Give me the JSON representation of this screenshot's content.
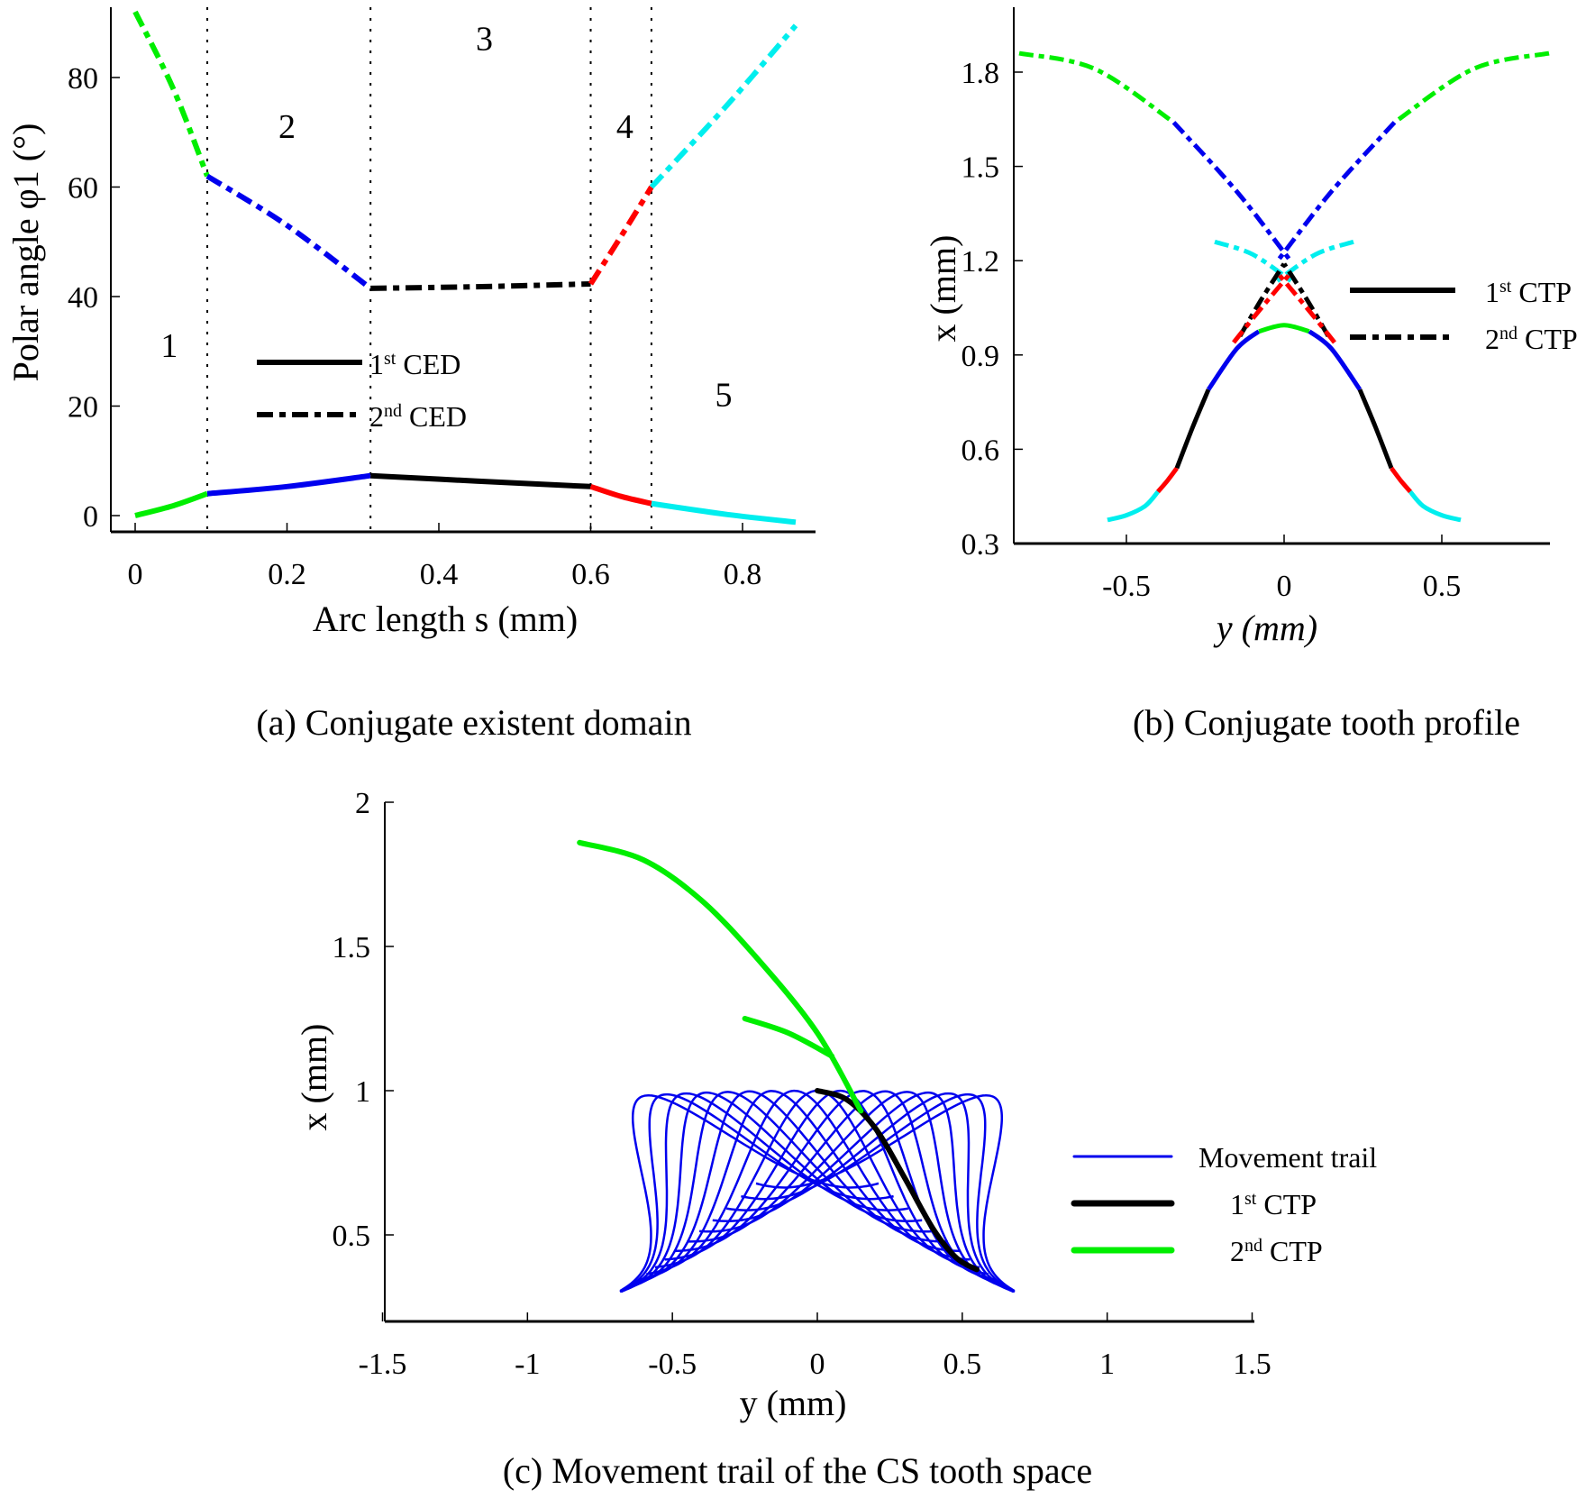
{
  "figure": {
    "captions": {
      "a": "(a) Conjugate existent domain",
      "b": "(b) Conjugate tooth profile",
      "c": "(c) Movement trail of the CS tooth space"
    },
    "colors": {
      "green": "#00ee00",
      "blue": "#0000ee",
      "black": "#000000",
      "red": "#ff0000",
      "cyan": "#00eeee"
    }
  },
  "chart_data": [
    {
      "id": "a",
      "type": "line",
      "title": "Conjugate existent domain",
      "xlabel": "Arc length s (mm)",
      "ylabel": "Polar angle φ1 (°)",
      "xlim": [
        -0.03,
        0.9
      ],
      "ylim": [
        -4,
        93
      ],
      "xticks": [
        "0",
        "0.2",
        "0.4",
        "0.6",
        "0.8"
      ],
      "xtick_values": [
        0,
        0.2,
        0.4,
        0.6,
        0.8
      ],
      "yticks": [
        "0",
        "20",
        "40",
        "60",
        "80"
      ],
      "ytick_values": [
        0,
        20,
        40,
        60,
        80
      ],
      "boundaries": [
        0.095,
        0.31,
        0.6,
        0.68
      ],
      "region_labels": [
        {
          "text": "1",
          "x": 0.045,
          "y": 29
        },
        {
          "text": "2",
          "x": 0.2,
          "y": 69
        },
        {
          "text": "3",
          "x": 0.46,
          "y": 85
        },
        {
          "text": "4",
          "x": 0.645,
          "y": 69
        },
        {
          "text": "5",
          "x": 0.775,
          "y": 20
        }
      ],
      "legend": [
        {
          "label": "1",
          "sup": "st",
          "rest": " CED",
          "style": "solid"
        },
        {
          "label": "2",
          "sup": "nd",
          "rest": " CED",
          "style": "dashdot"
        }
      ],
      "series": [
        {
          "name": "1st CED region 1",
          "color": "green",
          "style": "solid",
          "x": [
            0,
            0.05,
            0.095
          ],
          "y": [
            0,
            1.8,
            4
          ]
        },
        {
          "name": "1st CED region 2",
          "color": "blue",
          "style": "solid",
          "x": [
            0.095,
            0.2,
            0.31
          ],
          "y": [
            4,
            5.3,
            7.3
          ]
        },
        {
          "name": "1st CED region 3",
          "color": "black",
          "style": "solid",
          "x": [
            0.31,
            0.45,
            0.6
          ],
          "y": [
            7.3,
            6.3,
            5.3
          ]
        },
        {
          "name": "1st CED region 4",
          "color": "red",
          "style": "solid",
          "x": [
            0.6,
            0.64,
            0.68
          ],
          "y": [
            5.3,
            3.5,
            2.2
          ]
        },
        {
          "name": "1st CED region 5",
          "color": "cyan",
          "style": "solid",
          "x": [
            0.68,
            0.78,
            0.87
          ],
          "y": [
            2.2,
            0.2,
            -1.2
          ]
        },
        {
          "name": "2nd CED region 1",
          "color": "green",
          "style": "dashdot",
          "x": [
            0,
            0.05,
            0.095
          ],
          "y": [
            92,
            78,
            62
          ]
        },
        {
          "name": "2nd CED region 2",
          "color": "blue",
          "style": "dashdot",
          "x": [
            0.095,
            0.2,
            0.31
          ],
          "y": [
            62,
            53,
            41.5
          ]
        },
        {
          "name": "2nd CED region 3",
          "color": "black",
          "style": "dashdot",
          "x": [
            0.31,
            0.45,
            0.6
          ],
          "y": [
            41.5,
            41.8,
            42.3
          ]
        },
        {
          "name": "2nd CED region 4",
          "color": "red",
          "style": "dashdot",
          "x": [
            0.6,
            0.64,
            0.68
          ],
          "y": [
            42.3,
            51,
            60
          ]
        },
        {
          "name": "2nd CED region 5",
          "color": "cyan",
          "style": "dashdot",
          "x": [
            0.68,
            0.78,
            0.87
          ],
          "y": [
            60,
            75,
            89.5
          ]
        }
      ]
    },
    {
      "id": "b",
      "type": "line",
      "title": "Conjugate tooth profile",
      "xlabel": "y (mm)",
      "ylabel": "x (mm)",
      "xlim": [
        -0.85,
        0.85
      ],
      "ylim": [
        0.3,
        1.95
      ],
      "xticks": [
        "-0.5",
        "0",
        "0.5"
      ],
      "xtick_values": [
        -0.5,
        0,
        0.5
      ],
      "yticks": [
        "0.3",
        "0.6",
        "0.9",
        "1.2",
        "1.5",
        "1.8"
      ],
      "ytick_values": [
        0.3,
        0.6,
        0.9,
        1.2,
        1.5,
        1.8
      ],
      "legend": [
        {
          "label": "1",
          "sup": "st",
          "rest": " CTP",
          "style": "solid"
        },
        {
          "label": "2",
          "sup": "nd",
          "rest": " CTP",
          "style": "dashdot"
        }
      ],
      "series": [
        {
          "name": "1st CTP cyan left",
          "color": "cyan",
          "style": "solid",
          "x": [
            -0.56,
            -0.5,
            -0.44,
            -0.4
          ],
          "y": [
            0.375,
            0.39,
            0.42,
            0.465
          ]
        },
        {
          "name": "1st CTP red left",
          "color": "red",
          "style": "solid",
          "x": [
            -0.4,
            -0.37,
            -0.34
          ],
          "y": [
            0.465,
            0.5,
            0.54
          ]
        },
        {
          "name": "1st CTP black left",
          "color": "black",
          "style": "solid",
          "x": [
            -0.34,
            -0.29,
            -0.24
          ],
          "y": [
            0.54,
            0.67,
            0.79
          ]
        },
        {
          "name": "1st CTP blue left",
          "color": "blue",
          "style": "solid",
          "x": [
            -0.24,
            -0.15,
            -0.08
          ],
          "y": [
            0.79,
            0.92,
            0.975
          ]
        },
        {
          "name": "1st CTP green top",
          "color": "green",
          "style": "solid",
          "x": [
            -0.08,
            0,
            0.08
          ],
          "y": [
            0.975,
            0.995,
            0.975
          ]
        },
        {
          "name": "1st CTP blue right",
          "color": "blue",
          "style": "solid",
          "x": [
            0.08,
            0.15,
            0.24
          ],
          "y": [
            0.975,
            0.92,
            0.79
          ]
        },
        {
          "name": "1st CTP black right",
          "color": "black",
          "style": "solid",
          "x": [
            0.24,
            0.29,
            0.34
          ],
          "y": [
            0.79,
            0.67,
            0.54
          ]
        },
        {
          "name": "1st CTP red right",
          "color": "red",
          "style": "solid",
          "x": [
            0.34,
            0.37,
            0.4
          ],
          "y": [
            0.54,
            0.5,
            0.465
          ]
        },
        {
          "name": "1st CTP cyan right",
          "color": "cyan",
          "style": "solid",
          "x": [
            0.4,
            0.44,
            0.5,
            0.56
          ],
          "y": [
            0.465,
            0.42,
            0.39,
            0.375
          ]
        },
        {
          "name": "2nd CTP green left",
          "color": "green",
          "style": "dashdot",
          "x": [
            -0.84,
            -0.6,
            -0.35
          ],
          "y": [
            1.86,
            1.81,
            1.64
          ]
        },
        {
          "name": "2nd CTP blue left",
          "color": "blue",
          "style": "dashdot",
          "x": [
            -0.35,
            -0.15,
            0.02
          ],
          "y": [
            1.64,
            1.42,
            1.2
          ]
        },
        {
          "name": "2nd CTP green right",
          "color": "green",
          "style": "dashdot",
          "x": [
            0.84,
            0.6,
            0.35
          ],
          "y": [
            1.86,
            1.81,
            1.64
          ]
        },
        {
          "name": "2nd CTP blue right",
          "color": "blue",
          "style": "dashdot",
          "x": [
            0.35,
            0.15,
            -0.02
          ],
          "y": [
            1.64,
            1.42,
            1.2
          ]
        },
        {
          "name": "2nd CTP cyan left",
          "color": "cyan",
          "style": "dashdot",
          "x": [
            -0.22,
            -0.1,
            0.03
          ],
          "y": [
            1.26,
            1.22,
            1.13
          ]
        },
        {
          "name": "2nd CTP cyan right",
          "color": "cyan",
          "style": "dashdot",
          "x": [
            0.22,
            0.1,
            -0.03
          ],
          "y": [
            1.26,
            1.22,
            1.13
          ]
        },
        {
          "name": "2nd CTP black left",
          "color": "black",
          "style": "dashdot",
          "x": [
            -0.14,
            -0.07,
            0.0
          ],
          "y": [
            0.96,
            1.08,
            1.19
          ]
        },
        {
          "name": "2nd CTP black right",
          "color": "black",
          "style": "dashdot",
          "x": [
            0.14,
            0.07,
            0.0
          ],
          "y": [
            0.96,
            1.08,
            1.19
          ]
        },
        {
          "name": "2nd CTP red left",
          "color": "red",
          "style": "dashdot",
          "x": [
            -0.16,
            -0.08,
            0.02
          ],
          "y": [
            0.94,
            1.04,
            1.16
          ]
        },
        {
          "name": "2nd CTP red right",
          "color": "red",
          "style": "dashdot",
          "x": [
            0.16,
            0.08,
            -0.02
          ],
          "y": [
            0.94,
            1.04,
            1.16
          ]
        }
      ]
    },
    {
      "id": "c",
      "type": "line",
      "title": "Movement trail of the CS tooth space",
      "xlabel": "y (mm)",
      "ylabel": "x (mm)",
      "xlim": [
        -1.5,
        1.5
      ],
      "ylim": [
        0.2,
        2.0
      ],
      "xticks": [
        "-1.5",
        "-1",
        "-0.5",
        "0",
        "0.5",
        "1",
        "1.5"
      ],
      "xtick_values": [
        -1.5,
        -1,
        -0.5,
        0,
        0.5,
        1,
        1.5
      ],
      "yticks": [
        "0.5",
        "1",
        "1.5",
        "2"
      ],
      "ytick_values": [
        0.5,
        1,
        1.5,
        2
      ],
      "legend": [
        {
          "label": "Movement trail",
          "sup": "",
          "rest": "",
          "color": "blue",
          "weight": "thin"
        },
        {
          "label": "1",
          "sup": "st",
          "rest": " CTP",
          "color": "black",
          "weight": "thick"
        },
        {
          "label": "2",
          "sup": "nd",
          "rest": " CTP",
          "color": "green",
          "weight": "thick"
        }
      ],
      "trail_profile": {
        "description": "tooth-space profile (symmetric bell) copied at rotated positions",
        "base_y": 0.0,
        "valley_x": 1.0,
        "tip_x": 0.38,
        "half_width": 0.56,
        "positions": 17
      },
      "series": [
        {
          "name": "1st CTP",
          "color": "black",
          "x": [
            0,
            0.1,
            0.2,
            0.3,
            0.4,
            0.48,
            0.55
          ],
          "y": [
            1.0,
            0.97,
            0.87,
            0.7,
            0.52,
            0.42,
            0.38
          ]
        },
        {
          "name": "2nd CTP upper",
          "color": "green",
          "x": [
            -0.82,
            -0.6,
            -0.4,
            -0.2,
            0.0,
            0.15
          ],
          "y": [
            1.86,
            1.8,
            1.66,
            1.45,
            1.2,
            0.93
          ]
        },
        {
          "name": "2nd CTP lower",
          "color": "green",
          "x": [
            -0.25,
            -0.1,
            0.05
          ],
          "y": [
            1.25,
            1.2,
            1.12
          ]
        }
      ]
    }
  ]
}
